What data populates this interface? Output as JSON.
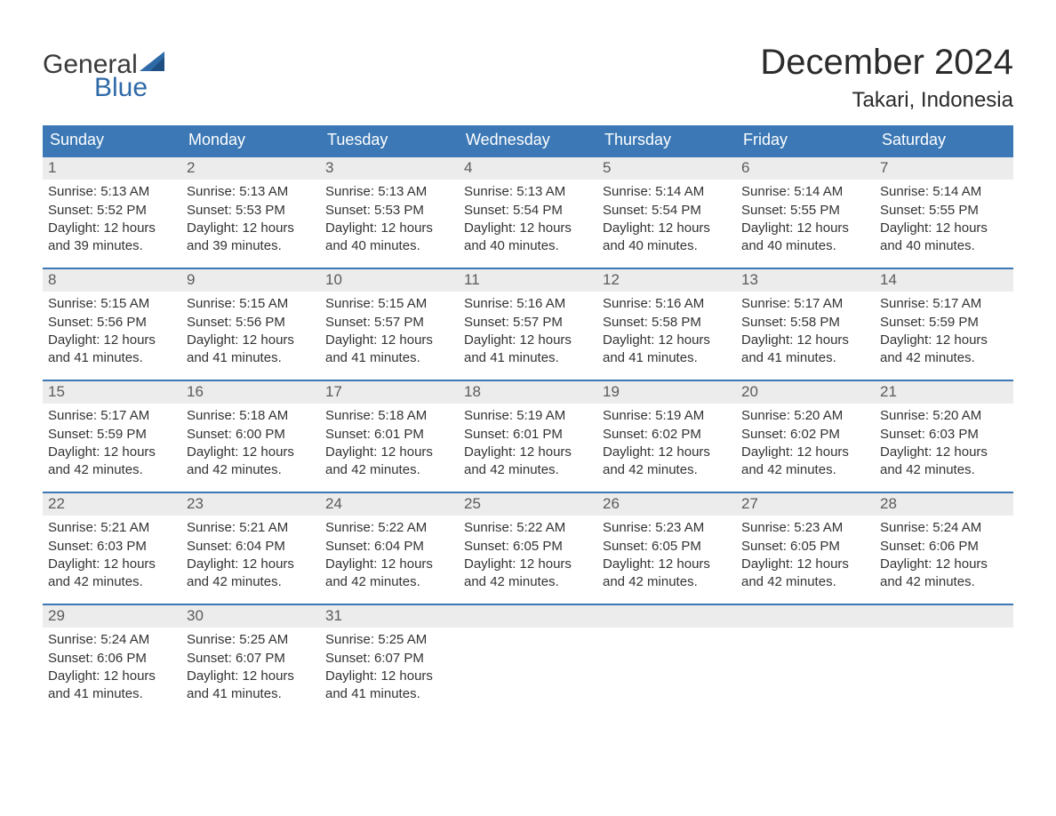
{
  "brand": {
    "word1": "General",
    "word2": "Blue",
    "sail_color": "#2f6aa8",
    "text_color": "#3a3a3a"
  },
  "title": "December 2024",
  "location": "Takari, Indonesia",
  "colors": {
    "header_bg": "#3b78b5",
    "header_text": "#ffffff",
    "week_border": "#3b78b5",
    "daynum_bg": "#ececec",
    "daynum_text": "#5b5b5b",
    "body_text": "#333333",
    "page_bg": "#ffffff"
  },
  "dow": [
    "Sunday",
    "Monday",
    "Tuesday",
    "Wednesday",
    "Thursday",
    "Friday",
    "Saturday"
  ],
  "weeks": [
    [
      {
        "n": "1",
        "sr": "Sunrise: 5:13 AM",
        "ss": "Sunset: 5:52 PM",
        "d1": "Daylight: 12 hours",
        "d2": "and 39 minutes."
      },
      {
        "n": "2",
        "sr": "Sunrise: 5:13 AM",
        "ss": "Sunset: 5:53 PM",
        "d1": "Daylight: 12 hours",
        "d2": "and 39 minutes."
      },
      {
        "n": "3",
        "sr": "Sunrise: 5:13 AM",
        "ss": "Sunset: 5:53 PM",
        "d1": "Daylight: 12 hours",
        "d2": "and 40 minutes."
      },
      {
        "n": "4",
        "sr": "Sunrise: 5:13 AM",
        "ss": "Sunset: 5:54 PM",
        "d1": "Daylight: 12 hours",
        "d2": "and 40 minutes."
      },
      {
        "n": "5",
        "sr": "Sunrise: 5:14 AM",
        "ss": "Sunset: 5:54 PM",
        "d1": "Daylight: 12 hours",
        "d2": "and 40 minutes."
      },
      {
        "n": "6",
        "sr": "Sunrise: 5:14 AM",
        "ss": "Sunset: 5:55 PM",
        "d1": "Daylight: 12 hours",
        "d2": "and 40 minutes."
      },
      {
        "n": "7",
        "sr": "Sunrise: 5:14 AM",
        "ss": "Sunset: 5:55 PM",
        "d1": "Daylight: 12 hours",
        "d2": "and 40 minutes."
      }
    ],
    [
      {
        "n": "8",
        "sr": "Sunrise: 5:15 AM",
        "ss": "Sunset: 5:56 PM",
        "d1": "Daylight: 12 hours",
        "d2": "and 41 minutes."
      },
      {
        "n": "9",
        "sr": "Sunrise: 5:15 AM",
        "ss": "Sunset: 5:56 PM",
        "d1": "Daylight: 12 hours",
        "d2": "and 41 minutes."
      },
      {
        "n": "10",
        "sr": "Sunrise: 5:15 AM",
        "ss": "Sunset: 5:57 PM",
        "d1": "Daylight: 12 hours",
        "d2": "and 41 minutes."
      },
      {
        "n": "11",
        "sr": "Sunrise: 5:16 AM",
        "ss": "Sunset: 5:57 PM",
        "d1": "Daylight: 12 hours",
        "d2": "and 41 minutes."
      },
      {
        "n": "12",
        "sr": "Sunrise: 5:16 AM",
        "ss": "Sunset: 5:58 PM",
        "d1": "Daylight: 12 hours",
        "d2": "and 41 minutes."
      },
      {
        "n": "13",
        "sr": "Sunrise: 5:17 AM",
        "ss": "Sunset: 5:58 PM",
        "d1": "Daylight: 12 hours",
        "d2": "and 41 minutes."
      },
      {
        "n": "14",
        "sr": "Sunrise: 5:17 AM",
        "ss": "Sunset: 5:59 PM",
        "d1": "Daylight: 12 hours",
        "d2": "and 42 minutes."
      }
    ],
    [
      {
        "n": "15",
        "sr": "Sunrise: 5:17 AM",
        "ss": "Sunset: 5:59 PM",
        "d1": "Daylight: 12 hours",
        "d2": "and 42 minutes."
      },
      {
        "n": "16",
        "sr": "Sunrise: 5:18 AM",
        "ss": "Sunset: 6:00 PM",
        "d1": "Daylight: 12 hours",
        "d2": "and 42 minutes."
      },
      {
        "n": "17",
        "sr": "Sunrise: 5:18 AM",
        "ss": "Sunset: 6:01 PM",
        "d1": "Daylight: 12 hours",
        "d2": "and 42 minutes."
      },
      {
        "n": "18",
        "sr": "Sunrise: 5:19 AM",
        "ss": "Sunset: 6:01 PM",
        "d1": "Daylight: 12 hours",
        "d2": "and 42 minutes."
      },
      {
        "n": "19",
        "sr": "Sunrise: 5:19 AM",
        "ss": "Sunset: 6:02 PM",
        "d1": "Daylight: 12 hours",
        "d2": "and 42 minutes."
      },
      {
        "n": "20",
        "sr": "Sunrise: 5:20 AM",
        "ss": "Sunset: 6:02 PM",
        "d1": "Daylight: 12 hours",
        "d2": "and 42 minutes."
      },
      {
        "n": "21",
        "sr": "Sunrise: 5:20 AM",
        "ss": "Sunset: 6:03 PM",
        "d1": "Daylight: 12 hours",
        "d2": "and 42 minutes."
      }
    ],
    [
      {
        "n": "22",
        "sr": "Sunrise: 5:21 AM",
        "ss": "Sunset: 6:03 PM",
        "d1": "Daylight: 12 hours",
        "d2": "and 42 minutes."
      },
      {
        "n": "23",
        "sr": "Sunrise: 5:21 AM",
        "ss": "Sunset: 6:04 PM",
        "d1": "Daylight: 12 hours",
        "d2": "and 42 minutes."
      },
      {
        "n": "24",
        "sr": "Sunrise: 5:22 AM",
        "ss": "Sunset: 6:04 PM",
        "d1": "Daylight: 12 hours",
        "d2": "and 42 minutes."
      },
      {
        "n": "25",
        "sr": "Sunrise: 5:22 AM",
        "ss": "Sunset: 6:05 PM",
        "d1": "Daylight: 12 hours",
        "d2": "and 42 minutes."
      },
      {
        "n": "26",
        "sr": "Sunrise: 5:23 AM",
        "ss": "Sunset: 6:05 PM",
        "d1": "Daylight: 12 hours",
        "d2": "and 42 minutes."
      },
      {
        "n": "27",
        "sr": "Sunrise: 5:23 AM",
        "ss": "Sunset: 6:05 PM",
        "d1": "Daylight: 12 hours",
        "d2": "and 42 minutes."
      },
      {
        "n": "28",
        "sr": "Sunrise: 5:24 AM",
        "ss": "Sunset: 6:06 PM",
        "d1": "Daylight: 12 hours",
        "d2": "and 42 minutes."
      }
    ],
    [
      {
        "n": "29",
        "sr": "Sunrise: 5:24 AM",
        "ss": "Sunset: 6:06 PM",
        "d1": "Daylight: 12 hours",
        "d2": "and 41 minutes."
      },
      {
        "n": "30",
        "sr": "Sunrise: 5:25 AM",
        "ss": "Sunset: 6:07 PM",
        "d1": "Daylight: 12 hours",
        "d2": "and 41 minutes."
      },
      {
        "n": "31",
        "sr": "Sunrise: 5:25 AM",
        "ss": "Sunset: 6:07 PM",
        "d1": "Daylight: 12 hours",
        "d2": "and 41 minutes."
      },
      {
        "n": "",
        "sr": "",
        "ss": "",
        "d1": "",
        "d2": "",
        "empty": true
      },
      {
        "n": "",
        "sr": "",
        "ss": "",
        "d1": "",
        "d2": "",
        "empty": true
      },
      {
        "n": "",
        "sr": "",
        "ss": "",
        "d1": "",
        "d2": "",
        "empty": true
      },
      {
        "n": "",
        "sr": "",
        "ss": "",
        "d1": "",
        "d2": "",
        "empty": true
      }
    ]
  ]
}
